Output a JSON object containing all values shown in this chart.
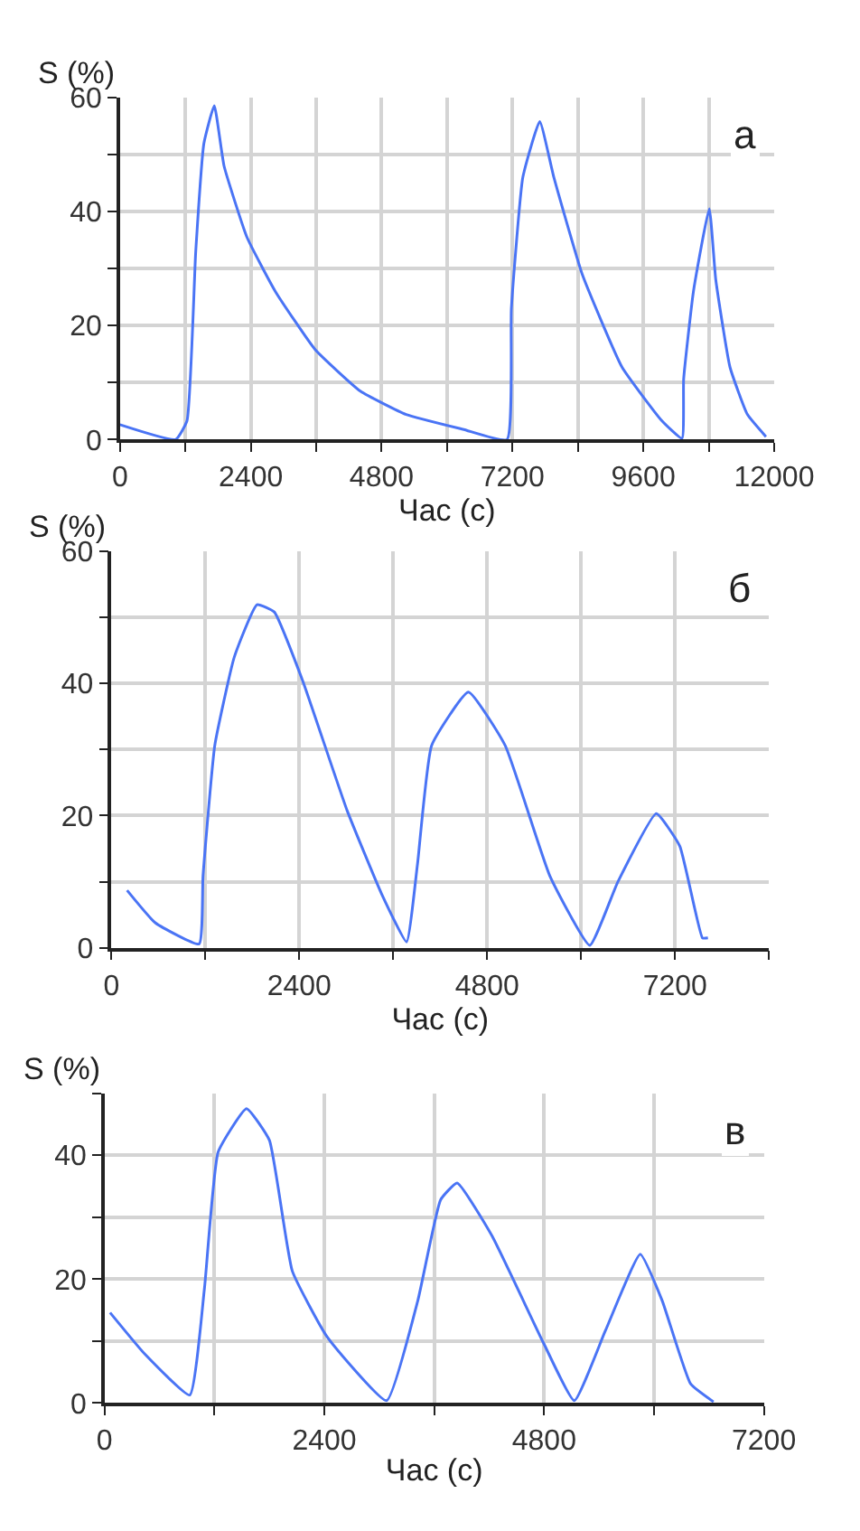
{
  "chart_data": [
    {
      "type": "line",
      "xlabel": "Час (с)",
      "ylabel": "S (%)",
      "annotations": [
        "а"
      ],
      "grid": true,
      "marker": "none",
      "line_style": "solid",
      "color": "#4a74f5",
      "x": [
        0,
        1020,
        1230,
        1390,
        1540,
        1730,
        1910,
        2330,
        2850,
        3580,
        4410,
        5250,
        6290,
        7100,
        7180,
        7390,
        7700,
        7960,
        8480,
        9210,
        9940,
        10310,
        10340,
        10520,
        10810,
        10930,
        11190,
        11510,
        11850
      ],
      "values": [
        2.6,
        0,
        3.3,
        33,
        52,
        58.6,
        48,
        35.5,
        26,
        15.8,
        8.5,
        4.4,
        1.8,
        0,
        23,
        46,
        55.8,
        46,
        29,
        12.7,
        3.3,
        0.2,
        10.6,
        26,
        40.5,
        28,
        12.7,
        4.4,
        0.5
      ],
      "xlim": [
        0,
        12000
      ],
      "ylim": [
        0,
        60
      ],
      "xticks": [
        0,
        {
          "value": 1200,
          "label": null
        },
        2400,
        {
          "value": 3600,
          "label": null
        },
        4800,
        {
          "value": 6000,
          "label": null
        },
        7200,
        {
          "value": 8400,
          "label": null
        },
        9600,
        {
          "value": 10800,
          "label": null
        },
        12000
      ],
      "yticks": [
        0,
        {
          "value": 10,
          "label": null
        },
        20,
        {
          "value": 30,
          "label": null
        },
        40,
        {
          "value": 50,
          "label": null
        },
        60
      ]
    },
    {
      "type": "line",
      "xlabel": "Час (с)",
      "ylabel": "S (%)",
      "annotations": [
        "б"
      ],
      "grid": true,
      "marker": "none",
      "line_style": "solid",
      "color": "#4a74f5",
      "x": [
        200,
        560,
        1120,
        1170,
        1320,
        1570,
        1860,
        2080,
        2440,
        3010,
        3450,
        3770,
        3910,
        4090,
        4560,
        5030,
        5600,
        6110,
        6470,
        6960,
        7260,
        7550,
        7620
      ],
      "values": [
        8.7,
        3.8,
        0.6,
        10.9,
        30.6,
        44,
        51.9,
        50.8,
        40.5,
        20.8,
        8.2,
        0.9,
        12.7,
        30.6,
        38.7,
        30.6,
        10.9,
        0.4,
        10,
        20.3,
        15.4,
        1.5,
        1.5
      ],
      "xlim": [
        0,
        8400
      ],
      "ylim": [
        0,
        60
      ],
      "xticks": [
        0,
        {
          "value": 1200,
          "label": null
        },
        2400,
        {
          "value": 3600,
          "label": null
        },
        4800,
        {
          "value": 6000,
          "label": null
        },
        7200,
        {
          "value": 8400,
          "label": null
        }
      ],
      "yticks": [
        0,
        {
          "value": 10,
          "label": null
        },
        20,
        {
          "value": 30,
          "label": null
        },
        40,
        {
          "value": 50,
          "label": null
        },
        60
      ]
    },
    {
      "type": "line",
      "xlabel": "Час (с)",
      "ylabel": "S (%)",
      "annotations": [
        "в"
      ],
      "grid": true,
      "marker": "none",
      "line_style": "solid",
      "color": "#4a74f5",
      "x": [
        60,
        440,
        930,
        1090,
        1240,
        1550,
        1800,
        2050,
        2430,
        3080,
        3420,
        3670,
        3850,
        4230,
        4790,
        5130,
        5470,
        5850,
        6090,
        6400,
        6650
      ],
      "values": [
        14.6,
        7.9,
        1.3,
        18.4,
        40.5,
        47.5,
        42.4,
        21.3,
        10.7,
        0.4,
        16.5,
        32.8,
        35.5,
        27,
        9.8,
        0.4,
        11.7,
        24,
        16.5,
        3.1,
        0.2
      ],
      "xlim": [
        0,
        7200
      ],
      "ylim": [
        0,
        50
      ],
      "xticks": [
        0,
        {
          "value": 1200,
          "label": null
        },
        2400,
        {
          "value": 3600,
          "label": null
        },
        4800,
        {
          "value": 6000,
          "label": null
        },
        7200
      ],
      "yticks": [
        0,
        {
          "value": 10,
          "label": null
        },
        20,
        {
          "value": 30,
          "label": null
        },
        40,
        {
          "value": 50,
          "label": null
        }
      ]
    }
  ]
}
